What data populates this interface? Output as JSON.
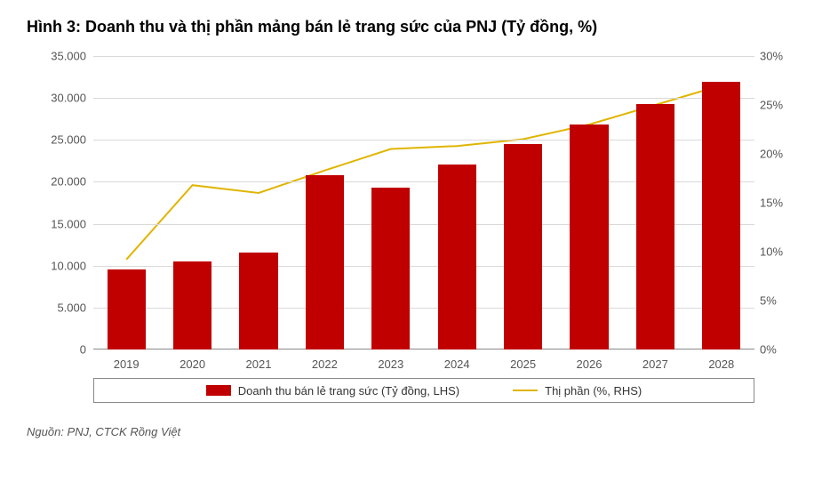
{
  "title": "Hình 3: Doanh thu và thị phần mảng bán lẻ trang sức của PNJ (Tỷ đồng, %)",
  "source": "Nguồn: PNJ, CTCK Rồng Việt",
  "chart": {
    "type": "bar-line-dual-axis",
    "categories": [
      "2019",
      "2020",
      "2021",
      "2022",
      "2023",
      "2024",
      "2025",
      "2026",
      "2027",
      "2028"
    ],
    "bar_series": {
      "label": "Doanh thu bán lẻ trang sức (Tỷ đồng, LHS)",
      "values": [
        9500,
        10500,
        11600,
        20800,
        19300,
        22100,
        24500,
        26800,
        29300,
        31900
      ],
      "color": "#c00000"
    },
    "line_series": {
      "label": "Thị phần (%, RHS)",
      "values": [
        9.2,
        16.8,
        16.0,
        18.3,
        20.5,
        20.8,
        21.5,
        23.0,
        25.0,
        27.0
      ],
      "color": "#e0b500",
      "line_width": 2
    },
    "y_left": {
      "min": 0,
      "max": 35000,
      "step": 5000,
      "tick_labels": [
        "0",
        "5.000",
        "10.000",
        "15.000",
        "20.000",
        "25.000",
        "30.000",
        "35.000"
      ]
    },
    "y_right": {
      "min": 0,
      "max": 30,
      "step": 5,
      "tick_labels": [
        "0%",
        "5%",
        "10%",
        "15%",
        "20%",
        "25%",
        "30%"
      ]
    },
    "grid_color": "#d9d9d9",
    "background_color": "#ffffff",
    "bar_width_ratio": 0.58,
    "title_fontsize": 18,
    "label_fontsize": 13
  }
}
